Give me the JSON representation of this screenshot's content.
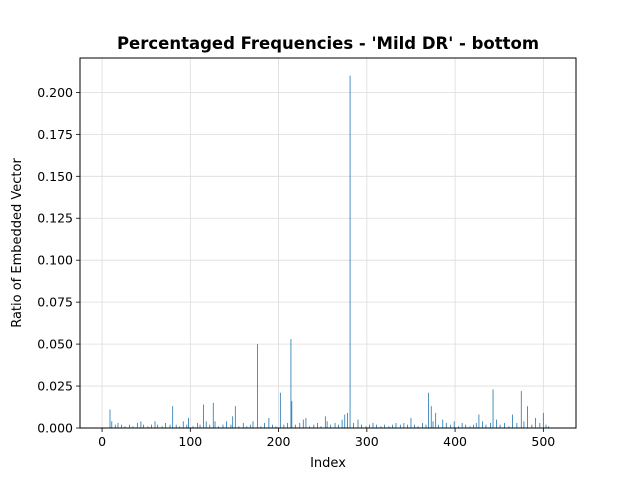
{
  "chart_data": {
    "type": "bar",
    "title": "Percentaged Frequencies - 'Mild DR' - bottom",
    "xlabel": "Index",
    "ylabel": "Ratio of Embedded Vector",
    "xlim": [
      -25,
      537
    ],
    "ylim": [
      0.0,
      0.2205
    ],
    "x_ticks": [
      0,
      100,
      200,
      300,
      400,
      500
    ],
    "x_tick_labels": [
      "0",
      "100",
      "200",
      "300",
      "400",
      "500"
    ],
    "y_ticks": [
      0.0,
      0.025,
      0.05,
      0.075,
      0.1,
      0.125,
      0.15,
      0.175,
      0.2
    ],
    "y_tick_labels": [
      "0.000",
      "0.025",
      "0.050",
      "0.075",
      "0.100",
      "0.125",
      "0.150",
      "0.175",
      "0.200"
    ],
    "grid": true,
    "bar_color": "#1f77b4",
    "x": [
      9,
      11,
      15,
      18,
      22,
      26,
      31,
      35,
      40,
      44,
      47,
      52,
      56,
      60,
      63,
      68,
      72,
      77,
      80,
      84,
      88,
      92,
      96,
      98,
      103,
      108,
      111,
      115,
      118,
      122,
      126,
      128,
      132,
      137,
      141,
      146,
      148,
      151,
      155,
      160,
      164,
      168,
      171,
      176,
      180,
      184,
      189,
      193,
      197,
      202,
      206,
      210,
      214,
      215,
      219,
      224,
      228,
      231,
      235,
      240,
      244,
      248,
      253,
      255,
      259,
      264,
      268,
      272,
      275,
      278,
      281,
      285,
      290,
      294,
      299,
      303,
      307,
      311,
      316,
      320,
      325,
      329,
      333,
      338,
      342,
      346,
      350,
      354,
      358,
      363,
      367,
      370,
      373,
      375,
      378,
      381,
      386,
      390,
      395,
      399,
      404,
      408,
      412,
      417,
      421,
      424,
      427,
      431,
      435,
      440,
      443,
      447,
      451,
      456,
      461,
      465,
      470,
      475,
      478,
      482,
      487,
      491,
      496,
      500,
      503,
      506
    ],
    "values": [
      0.011,
      0.004,
      0.002,
      0.003,
      0.002,
      0.001,
      0.002,
      0.001,
      0.003,
      0.004,
      0.002,
      0.001,
      0.002,
      0.004,
      0.002,
      0.001,
      0.003,
      0.002,
      0.013,
      0.002,
      0.001,
      0.004,
      0.002,
      0.006,
      0.001,
      0.003,
      0.002,
      0.014,
      0.004,
      0.002,
      0.015,
      0.004,
      0.001,
      0.002,
      0.004,
      0.002,
      0.007,
      0.013,
      0.001,
      0.003,
      0.001,
      0.002,
      0.004,
      0.05,
      0.001,
      0.003,
      0.006,
      0.002,
      0.001,
      0.021,
      0.002,
      0.003,
      0.053,
      0.016,
      0.002,
      0.003,
      0.005,
      0.006,
      0.001,
      0.002,
      0.003,
      0.001,
      0.007,
      0.004,
      0.002,
      0.003,
      0.002,
      0.005,
      0.008,
      0.009,
      0.21,
      0.003,
      0.005,
      0.002,
      0.001,
      0.002,
      0.003,
      0.002,
      0.001,
      0.002,
      0.001,
      0.002,
      0.003,
      0.002,
      0.003,
      0.002,
      0.006,
      0.002,
      0.001,
      0.003,
      0.002,
      0.021,
      0.013,
      0.004,
      0.009,
      0.002,
      0.005,
      0.003,
      0.002,
      0.004,
      0.001,
      0.003,
      0.002,
      0.001,
      0.002,
      0.003,
      0.008,
      0.004,
      0.002,
      0.003,
      0.023,
      0.005,
      0.002,
      0.003,
      0.001,
      0.008,
      0.003,
      0.022,
      0.004,
      0.013,
      0.002,
      0.006,
      0.003,
      0.009,
      0.002,
      0.001
    ]
  }
}
